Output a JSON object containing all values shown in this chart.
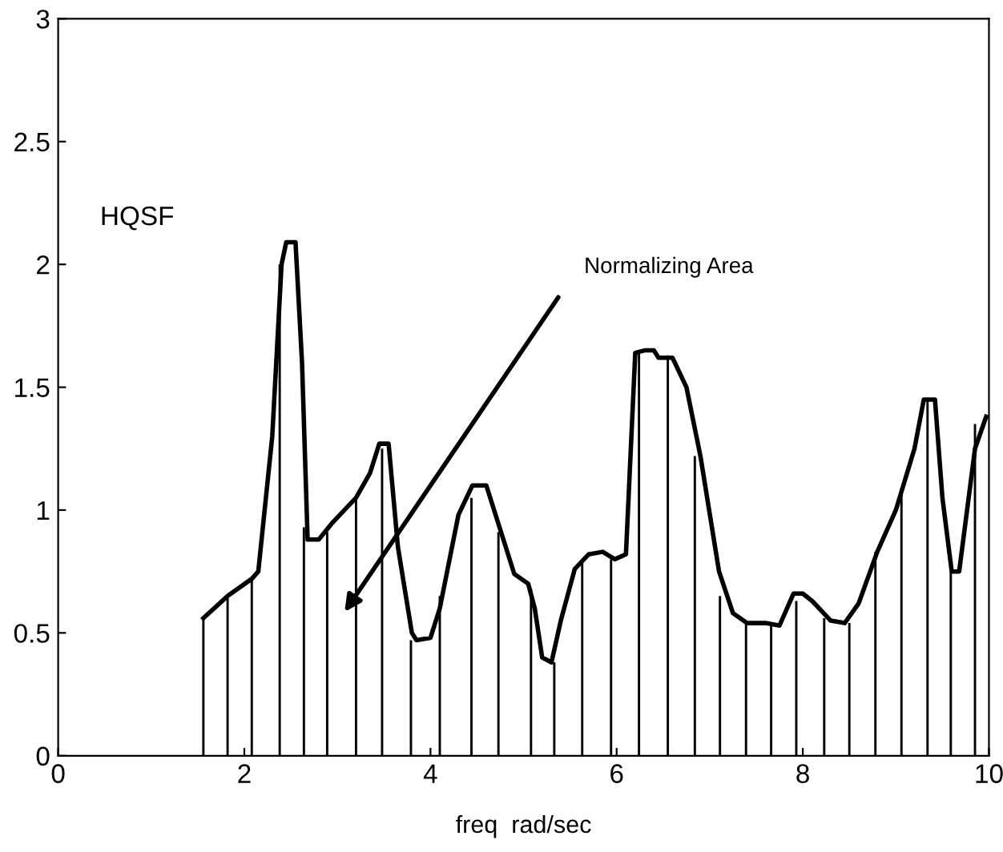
{
  "chart_data": {
    "type": "line",
    "xlabel": "freq  rad/sec",
    "xlim": [
      0,
      10
    ],
    "ylim": [
      0,
      3
    ],
    "xticks": [
      0,
      2,
      4,
      6,
      8,
      10
    ],
    "yticks": [
      0,
      0.5,
      1,
      1.5,
      2,
      2.5,
      3
    ],
    "grid": false,
    "legend": false,
    "series": [
      {
        "color": "#000000",
        "x": [
          1.56,
          1.82,
          2.08,
          2.15,
          2.3,
          2.4,
          2.45,
          2.55,
          2.62,
          2.68,
          2.8,
          2.95,
          3.2,
          3.35,
          3.45,
          3.55,
          3.65,
          3.8,
          3.85,
          4.0,
          4.1,
          4.3,
          4.45,
          4.6,
          4.75,
          4.9,
          5.05,
          5.12,
          5.2,
          5.3,
          5.4,
          5.55,
          5.7,
          5.85,
          5.98,
          6.1,
          6.2,
          6.3,
          6.4,
          6.45,
          6.6,
          6.75,
          6.9,
          7.1,
          7.25,
          7.4,
          7.6,
          7.75,
          7.9,
          8.0,
          8.1,
          8.3,
          8.45,
          8.6,
          8.8,
          9.0,
          9.2,
          9.3,
          9.42,
          9.5,
          9.6,
          9.68,
          9.85,
          9.97
        ],
        "values": [
          0.56,
          0.65,
          0.72,
          0.75,
          1.3,
          2.0,
          2.09,
          2.09,
          1.6,
          0.88,
          0.88,
          0.95,
          1.05,
          1.15,
          1.27,
          1.27,
          0.85,
          0.5,
          0.47,
          0.48,
          0.6,
          0.98,
          1.1,
          1.1,
          0.92,
          0.74,
          0.7,
          0.6,
          0.4,
          0.38,
          0.55,
          0.76,
          0.82,
          0.83,
          0.8,
          0.82,
          1.64,
          1.65,
          1.65,
          1.62,
          1.62,
          1.5,
          1.22,
          0.75,
          0.58,
          0.54,
          0.54,
          0.53,
          0.66,
          0.66,
          0.63,
          0.55,
          0.54,
          0.62,
          0.83,
          1.0,
          1.25,
          1.45,
          1.45,
          1.05,
          0.75,
          0.75,
          1.25,
          1.38
        ]
      },
      {
        "type": "bar",
        "color": "#000000",
        "x": [
          1.56,
          1.82,
          2.08,
          2.38,
          2.64,
          2.89,
          3.2,
          3.48,
          3.79,
          4.1,
          4.44,
          4.73,
          5.08,
          5.33,
          5.63,
          5.94,
          6.24,
          6.55,
          6.84,
          7.11,
          7.39,
          7.66,
          7.93,
          8.23,
          8.5,
          8.78,
          9.06,
          9.34,
          9.59,
          9.85
        ],
        "values": [
          0.56,
          0.65,
          0.72,
          2.0,
          0.93,
          0.91,
          1.05,
          1.25,
          0.47,
          0.65,
          1.05,
          0.91,
          0.68,
          0.38,
          0.8,
          0.8,
          1.65,
          1.63,
          1.22,
          0.65,
          0.54,
          0.53,
          0.63,
          0.56,
          0.54,
          0.83,
          1.09,
          1.45,
          0.75,
          1.35
        ]
      }
    ],
    "annotations": [
      "HQSF",
      "Normalizing Area"
    ]
  }
}
